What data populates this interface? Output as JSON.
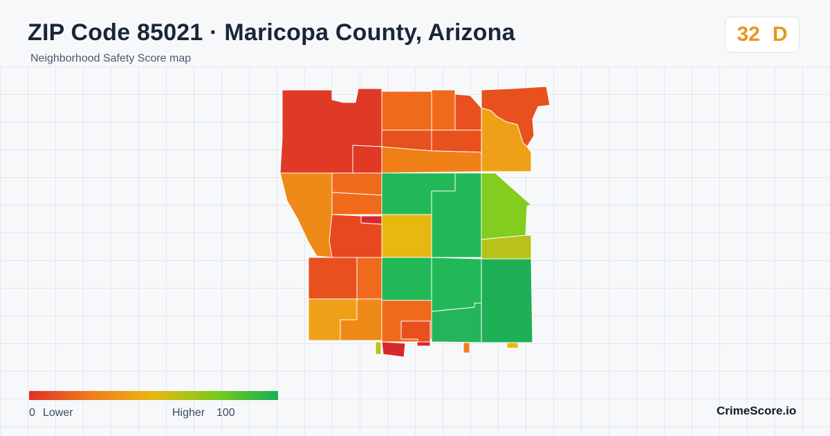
{
  "header": {
    "title": "ZIP Code 85021 · Maricopa County, Arizona",
    "subtitle": "Neighborhood Safety Score map"
  },
  "score": {
    "value": "32",
    "grade": "D",
    "color": "#e8961c"
  },
  "legend": {
    "low_value": "0",
    "low_label": "Lower",
    "high_label": "Higher",
    "high_value": "100",
    "gradient": [
      "#e0302a",
      "#f07c1c",
      "#e8b810",
      "#7cc81e",
      "#16b054"
    ]
  },
  "brand": "CrimeScore.io",
  "map": {
    "regions": [
      {
        "name": "region-nw-large",
        "color": "#e03a26"
      },
      {
        "name": "region-n-center-west",
        "color": "#f06a1c"
      },
      {
        "name": "region-n-center-mid",
        "color": "#f06a1c"
      },
      {
        "name": "region-n-center-east",
        "color": "#e8501e"
      },
      {
        "name": "region-ne",
        "color": "#e8501e"
      },
      {
        "name": "region-n2-west",
        "color": "#e8501e"
      },
      {
        "name": "region-n2-east",
        "color": "#e8501e"
      },
      {
        "name": "region-ne-lower",
        "color": "#f0a018"
      },
      {
        "name": "region-nw-notch",
        "color": "#e03a26"
      },
      {
        "name": "region-band",
        "color": "#f08018"
      },
      {
        "name": "region-west-strip",
        "color": "#ee8a18"
      },
      {
        "name": "region-w1",
        "color": "#f06a1c"
      },
      {
        "name": "region-w2",
        "color": "#f06a1c"
      },
      {
        "name": "region-w3",
        "color": "#e8481e"
      },
      {
        "name": "region-w-sliver",
        "color": "#d8282c"
      },
      {
        "name": "region-c1",
        "color": "#22b858"
      },
      {
        "name": "region-c-yellow",
        "color": "#e8b810"
      },
      {
        "name": "region-c2",
        "color": "#22b858"
      },
      {
        "name": "region-e-lime",
        "color": "#84cc1e"
      },
      {
        "name": "region-e-olive",
        "color": "#b8c218"
      },
      {
        "name": "region-sw1",
        "color": "#e8501e"
      },
      {
        "name": "region-sw1-east",
        "color": "#f06a1c"
      },
      {
        "name": "region-c3",
        "color": "#22b858"
      },
      {
        "name": "region-c4",
        "color": "#22b858"
      },
      {
        "name": "region-se",
        "color": "#1fb055"
      },
      {
        "name": "region-sw2",
        "color": "#f0a018"
      },
      {
        "name": "region-sw2-east",
        "color": "#ee8a18"
      },
      {
        "name": "region-s1",
        "color": "#f06a1c"
      },
      {
        "name": "region-s1-inner",
        "color": "#e8501e"
      },
      {
        "name": "region-s-green",
        "color": "#26b45a"
      },
      {
        "name": "region-s-tab-1",
        "color": "#d8282c"
      },
      {
        "name": "region-s-tab-2",
        "color": "#d8282c"
      },
      {
        "name": "region-s-tab-3",
        "color": "#b8c218"
      },
      {
        "name": "region-s-tab-4",
        "color": "#f08018"
      },
      {
        "name": "region-s-tab-5",
        "color": "#e8b810"
      }
    ]
  }
}
